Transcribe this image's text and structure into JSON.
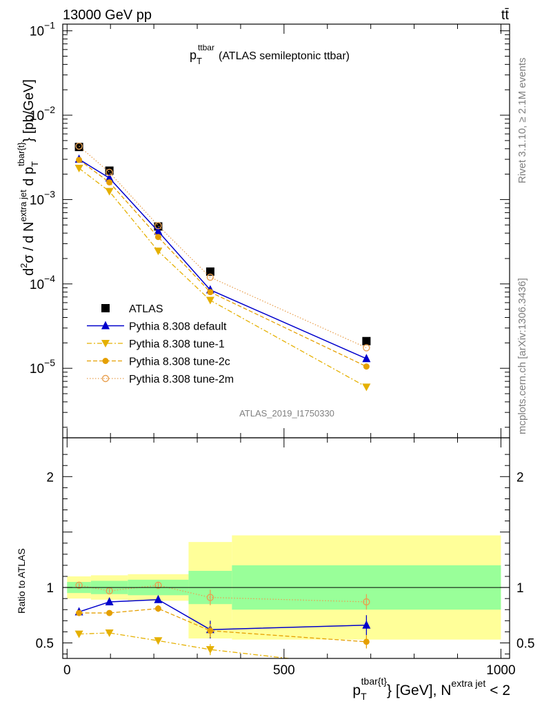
{
  "header": {
    "energy": "13000 GeV pp",
    "process": "tt̄",
    "plot_title_main": "p",
    "plot_title_sub": "T",
    "plot_title_sup": "ttbar",
    "plot_title_rest": "(ATLAS semileptonic ttbar)",
    "analysis_id": "ATLAS_2019_I1750330",
    "side_rivet": "Rivet 3.1.10, ≥ 2.1M events",
    "side_site": "mcplots.cern.ch [arXiv:1306.3436]"
  },
  "chart_data": {
    "type": "scatter",
    "x_axis": {
      "range": [
        -10,
        1020
      ],
      "ticks": [
        0,
        500,
        1000
      ],
      "tick_labels": [
        "0",
        "500",
        "1000"
      ],
      "label_parts": {
        "p": "p",
        "sub": "T",
        "sup": "tbar{t}",
        "mid": "} [GeV], N",
        "sup2": "extra jet",
        "end": "< 2"
      }
    },
    "main_panel": {
      "y_scale": "log",
      "y_range": [
        1.5e-06,
        0.12
      ],
      "y_tick_labels": [
        {
          "value": 1e-05,
          "base": "10",
          "exp": "−5"
        },
        {
          "value": 0.0001,
          "base": "10",
          "exp": "−4"
        },
        {
          "value": 0.001,
          "base": "10",
          "exp": "−3"
        },
        {
          "value": 0.01,
          "base": "10",
          "exp": "−2"
        },
        {
          "value": 0.1,
          "base": "10",
          "exp": "−1"
        }
      ],
      "y_label_parts": {
        "a": "d",
        "a_sup": "2",
        "b": "σ  /  d N",
        "b_sup": "extra jet",
        "c": " d p",
        "c_sub": "T",
        "c_sup": "tbar{t}",
        "d": "} [pb/GeV]"
      }
    },
    "ratio_panel": {
      "y_range": [
        0.36,
        2.35
      ],
      "y_label": "Ratio to ATLAS",
      "y_tick_labels": [
        {
          "value": 0.5,
          "label": "0.5"
        },
        {
          "value": 1,
          "label": "1"
        },
        {
          "value": 2,
          "label": "2"
        }
      ],
      "bins": [
        {
          "x0": 0,
          "x1": 55,
          "stat": [
            0.95,
            1.05
          ],
          "total": [
            0.9,
            1.1
          ]
        },
        {
          "x0": 55,
          "x1": 140,
          "stat": [
            0.94,
            1.06
          ],
          "total": [
            0.89,
            1.11
          ]
        },
        {
          "x0": 140,
          "x1": 280,
          "stat": [
            0.93,
            1.07
          ],
          "total": [
            0.88,
            1.12
          ]
        },
        {
          "x0": 280,
          "x1": 380,
          "stat": [
            0.85,
            1.15
          ],
          "total": [
            0.54,
            1.41
          ]
        },
        {
          "x0": 380,
          "x1": 1000,
          "stat": [
            0.8,
            1.2
          ],
          "total": [
            0.53,
            1.47
          ]
        }
      ]
    },
    "series": [
      {
        "name": "ATLAS",
        "color": "#000000",
        "marker": "square",
        "line": "none",
        "x": [
          27.5,
          97.5,
          210,
          330,
          690
        ],
        "y": [
          0.0042,
          0.0022,
          0.00048,
          0.00014,
          2.1e-05
        ],
        "ratio": [
          1,
          1,
          1,
          1,
          1
        ]
      },
      {
        "name": "Pythia 8.308 default",
        "color": "#0000cc",
        "marker": "triangle-up",
        "line": "solid",
        "x": [
          27.5,
          97.5,
          210,
          330,
          690
        ],
        "y": [
          0.003,
          0.0018,
          0.00042,
          8.5e-05,
          1.3e-05
        ],
        "ratio": [
          0.78,
          0.87,
          0.89,
          0.62,
          0.66
        ],
        "ratio_err": [
          0.02,
          0.02,
          0.03,
          0.08,
          0.09
        ]
      },
      {
        "name": "Pythia 8.308 tune-1",
        "color": "#e5b000",
        "marker": "triangle-down",
        "line": "dashdot",
        "x": [
          27.5,
          97.5,
          210,
          330,
          690
        ],
        "y": [
          0.00235,
          0.00125,
          0.000245,
          6.4e-05,
          6e-06
        ],
        "ratio": [
          0.58,
          0.59,
          0.52,
          0.44,
          0.28
        ],
        "ratio_err": [
          0.02,
          0.02,
          0.03,
          0.05,
          0.05
        ]
      },
      {
        "name": "Pythia 8.308 tune-2c",
        "color": "#e59f00",
        "marker": "circle",
        "line": "dashed",
        "x": [
          27.5,
          97.5,
          210,
          330,
          690
        ],
        "y": [
          0.00295,
          0.0016,
          0.00036,
          8e-05,
          1.05e-05
        ],
        "ratio": [
          0.77,
          0.77,
          0.81,
          0.61,
          0.51
        ],
        "ratio_err": [
          0.02,
          0.02,
          0.03,
          0.06,
          0.06
        ]
      },
      {
        "name": "Pythia 8.308 tune-2m",
        "color": "#e8a050",
        "marker": "open-circle",
        "line": "dotted",
        "x": [
          27.5,
          97.5,
          210,
          330,
          690
        ],
        "y": [
          0.0043,
          0.0021,
          0.00049,
          0.00012,
          1.75e-05
        ],
        "ratio": [
          1.02,
          0.97,
          1.02,
          0.91,
          0.87
        ],
        "ratio_err": [
          0.02,
          0.02,
          0.03,
          0.07,
          0.07
        ]
      }
    ],
    "legend_position": "lower-left"
  }
}
